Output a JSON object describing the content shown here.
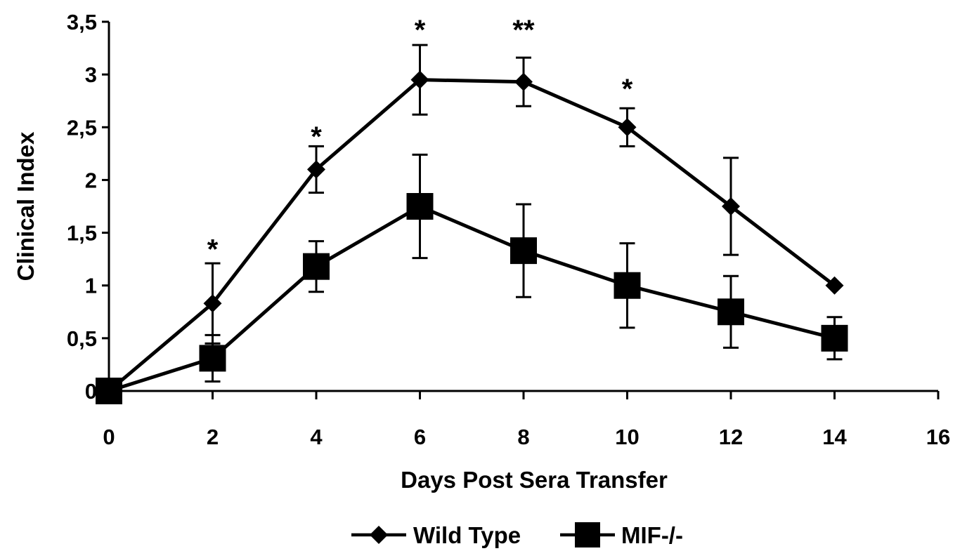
{
  "chart_data": {
    "type": "line",
    "title": "",
    "xlabel": "Days Post Sera Transfer",
    "ylabel": "Clinical Index",
    "xlim": [
      0,
      16
    ],
    "ylim": [
      0,
      3.5
    ],
    "x_ticks": [
      0,
      2,
      4,
      6,
      8,
      10,
      12,
      14,
      16
    ],
    "x_tick_labels": [
      "0",
      "2",
      "4",
      "6",
      "8",
      "10",
      "12",
      "14",
      "16"
    ],
    "y_ticks": [
      0,
      0.5,
      1,
      1.5,
      2,
      2.5,
      3,
      3.5
    ],
    "y_tick_labels": [
      "0",
      "0,5",
      "1",
      "1,5",
      "2",
      "2,5",
      "3",
      "3,5"
    ],
    "grid": false,
    "legend_position": "bottom-center",
    "series": [
      {
        "name": "Wild Type",
        "marker": "diamond",
        "color": "#000000",
        "points": [
          {
            "x": 0,
            "y": 0,
            "err": 0
          },
          {
            "x": 2,
            "y": 0.83,
            "err": 0.38
          },
          {
            "x": 4,
            "y": 2.1,
            "err": 0.22
          },
          {
            "x": 6,
            "y": 2.95,
            "err": 0.33
          },
          {
            "x": 8,
            "y": 2.93,
            "err": 0.23
          },
          {
            "x": 10,
            "y": 2.5,
            "err": 0.18
          },
          {
            "x": 12,
            "y": 1.75,
            "err": 0.46
          },
          {
            "x": 14,
            "y": 1.0,
            "err": 0
          }
        ]
      },
      {
        "name": "MIF-/-",
        "marker": "square",
        "color": "#000000",
        "points": [
          {
            "x": 0,
            "y": 0,
            "err": 0
          },
          {
            "x": 2,
            "y": 0.31,
            "err": 0.22
          },
          {
            "x": 4,
            "y": 1.18,
            "err": 0.24
          },
          {
            "x": 6,
            "y": 1.75,
            "err": 0.49
          },
          {
            "x": 8,
            "y": 1.33,
            "err": 0.44
          },
          {
            "x": 10,
            "y": 1.0,
            "err": 0.4
          },
          {
            "x": 12,
            "y": 0.75,
            "err": 0.34
          },
          {
            "x": 14,
            "y": 0.5,
            "err": 0.2
          }
        ]
      }
    ],
    "annotations": [
      {
        "x": 2,
        "y": 1.4,
        "text": "*"
      },
      {
        "x": 4,
        "y": 2.47,
        "text": "*"
      },
      {
        "x": 6,
        "y": 3.48,
        "text": "*"
      },
      {
        "x": 8,
        "y": 3.48,
        "text": "**"
      },
      {
        "x": 10,
        "y": 2.92,
        "text": "*"
      }
    ]
  }
}
